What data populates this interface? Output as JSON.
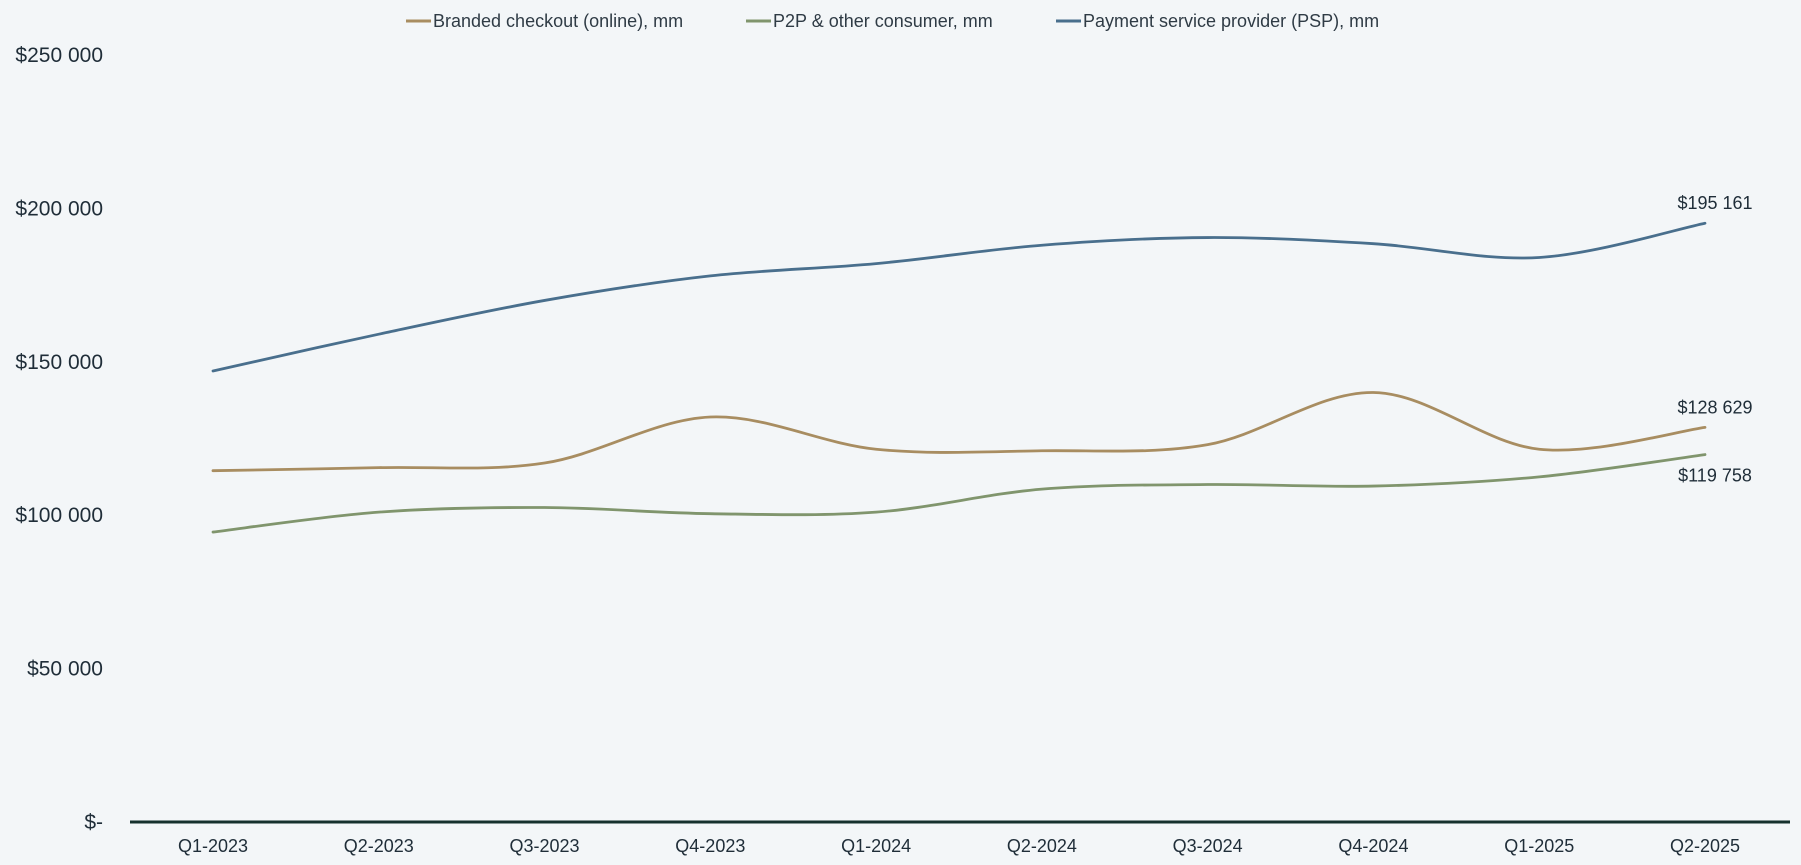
{
  "chart_data": {
    "type": "line",
    "title": "",
    "xlabel": "",
    "ylabel": "",
    "categories": [
      "Q1-2023",
      "Q2-2023",
      "Q3-2023",
      "Q4-2023",
      "Q1-2024",
      "Q2-2024",
      "Q3-2024",
      "Q4-2024",
      "Q1-2025",
      "Q2-2025"
    ],
    "ylim": [
      0,
      250000
    ],
    "y_ticks": [
      {
        "value": 0,
        "label": "$-"
      },
      {
        "value": 50000,
        "label": "$50 000"
      },
      {
        "value": 100000,
        "label": "$100 000"
      },
      {
        "value": 150000,
        "label": "$150 000"
      },
      {
        "value": 200000,
        "label": "$200 000"
      },
      {
        "value": 250000,
        "label": "$250 000"
      }
    ],
    "grid": false,
    "legend_position": "top-center",
    "smooth": true,
    "series": [
      {
        "name": "Branded checkout (online), mm",
        "color": "#a88d61",
        "values": [
          114500,
          115500,
          117000,
          132000,
          121500,
          121000,
          123000,
          140000,
          121500,
          128629
        ],
        "end_label": "$128 629"
      },
      {
        "name": "P2P & other consumer, mm",
        "color": "#80956d",
        "values": [
          94500,
          101000,
          102500,
          100500,
          101000,
          108500,
          110000,
          109500,
          112500,
          119758
        ],
        "end_label": "$119 758"
      },
      {
        "name": "Payment service provider (PSP), mm",
        "color": "#496f8d",
        "values": [
          147000,
          159000,
          170000,
          178000,
          182000,
          188000,
          190500,
          188500,
          184000,
          195161
        ],
        "end_label": "$195 161"
      }
    ],
    "axis_color": "#16312e"
  }
}
